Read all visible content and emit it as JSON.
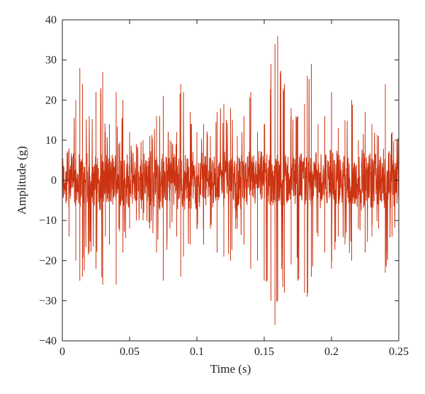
{
  "chart_data": {
    "type": "line",
    "title": "",
    "xlabel": "Time (s)",
    "ylabel": "Amplitude (g)",
    "xlim": [
      0,
      0.25
    ],
    "ylim": [
      -40,
      40
    ],
    "x_ticks": [
      0,
      0.05,
      0.1,
      0.15,
      0.2,
      0.25
    ],
    "x_tick_labels": [
      "0",
      "0.05",
      "0.1",
      "0.15",
      "0.2",
      "0.25"
    ],
    "y_ticks": [
      -40,
      -30,
      -20,
      -10,
      0,
      10,
      20,
      30,
      40
    ],
    "y_tick_labels": [
      "−40",
      "−30",
      "−20",
      "−10",
      "0",
      "10",
      "20",
      "30",
      "40"
    ],
    "grid": false,
    "line_color": "#cc3311",
    "series": [
      {
        "x": [
          0,
          0.005,
          0.01,
          0.013,
          0.015,
          0.02,
          0.025,
          0.03,
          0.032,
          0.035,
          0.04,
          0.042,
          0.045,
          0.05,
          0.055,
          0.06,
          0.065,
          0.07,
          0.075,
          0.08,
          0.085,
          0.088,
          0.09,
          0.095,
          0.1,
          0.105,
          0.11,
          0.115,
          0.12,
          0.125,
          0.13,
          0.135,
          0.14,
          0.145,
          0.15,
          0.155,
          0.158,
          0.16,
          0.165,
          0.17,
          0.175,
          0.18,
          0.182,
          0.185,
          0.19,
          0.195,
          0.2,
          0.205,
          0.21,
          0.215,
          0.22,
          0.225,
          0.23,
          0.235,
          0.24,
          0.245,
          0.25
        ],
        "y_max": [
          9,
          8,
          20,
          28,
          24,
          16,
          22,
          27,
          12,
          14,
          22,
          9,
          20,
          12,
          9,
          10,
          11,
          16,
          21,
          10,
          12,
          24,
          22,
          17,
          12,
          14,
          11,
          17,
          19,
          18,
          11,
          16,
          22,
          12,
          14,
          29,
          34,
          36,
          24,
          18,
          16,
          19,
          26,
          29,
          14,
          16,
          22,
          13,
          15,
          20,
          10,
          17,
          14,
          11,
          24,
          12,
          11
        ],
        "y_min": [
          -10,
          -14,
          -20,
          -25,
          -24,
          -18,
          -22,
          -26,
          -14,
          -16,
          -26,
          -12,
          -18,
          -12,
          -10,
          -10,
          -12,
          -18,
          -25,
          -12,
          -14,
          -24,
          -19,
          -16,
          -12,
          -16,
          -12,
          -18,
          -19,
          -20,
          -12,
          -16,
          -22,
          -20,
          -25,
          -30,
          -36,
          -30,
          -28,
          -21,
          -25,
          -28,
          -29,
          -24,
          -14,
          -18,
          -22,
          -14,
          -16,
          -20,
          -12,
          -18,
          -14,
          -12,
          -23,
          -14,
          -13
        ]
      }
    ]
  }
}
